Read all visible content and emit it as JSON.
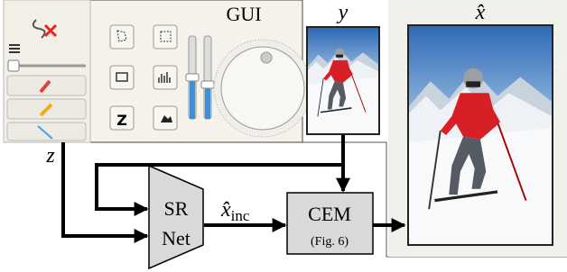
{
  "gui": {
    "title": "GUI",
    "button_label": "Z"
  },
  "images": {
    "input": "y",
    "output": "x̂"
  },
  "latent": "z",
  "sr_net": {
    "line1": "SR",
    "line2": "Net"
  },
  "intermediate": {
    "symbol": "x̂",
    "subscript": "inc"
  },
  "cem": {
    "title": "CEM",
    "ref": "(Fig. 6)"
  }
}
